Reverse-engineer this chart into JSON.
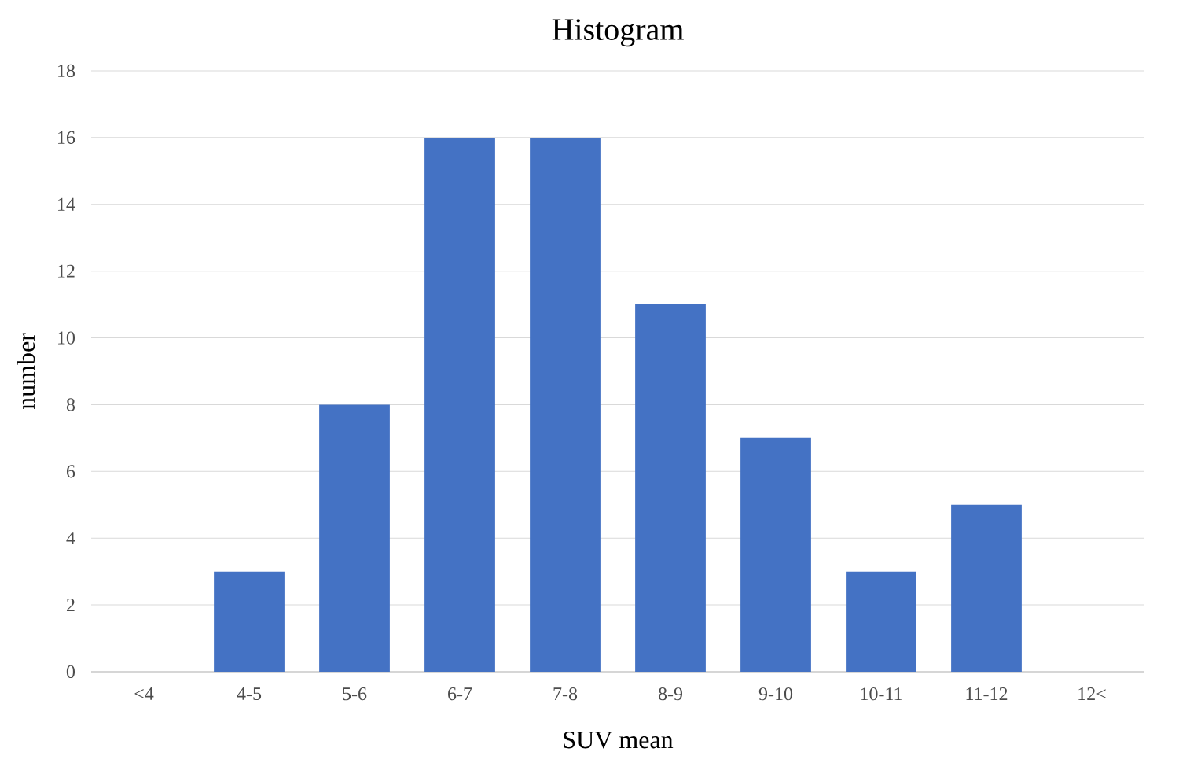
{
  "chart_data": {
    "type": "bar",
    "title": "Histogram",
    "xlabel": "SUV mean",
    "ylabel": "number",
    "categories": [
      "<4",
      "4-5",
      "5-6",
      "6-7",
      "7-8",
      "8-9",
      "9-10",
      "10-11",
      "11-12",
      "12<"
    ],
    "values": [
      0,
      3,
      8,
      16,
      16,
      11,
      7,
      3,
      5,
      0
    ],
    "color": "#4472c4",
    "ylim": [
      0,
      18
    ],
    "yticks": [
      0,
      2,
      4,
      6,
      8,
      10,
      12,
      14,
      16,
      18
    ],
    "grid": "y"
  }
}
